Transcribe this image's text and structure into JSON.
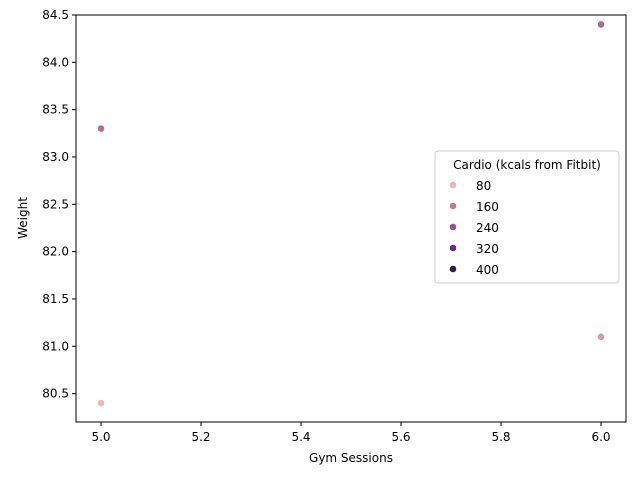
{
  "chart_data": {
    "type": "scatter",
    "title": "",
    "xlabel": "Gym Sessions",
    "ylabel": "Weight",
    "xlim": [
      4.95,
      6.05
    ],
    "ylim": [
      80.2,
      84.5
    ],
    "xticks": [
      5.0,
      5.2,
      5.4,
      5.6,
      5.8,
      6.0
    ],
    "xtick_labels": [
      "5.0",
      "5.2",
      "5.4",
      "5.6",
      "5.8",
      "6.0"
    ],
    "yticks": [
      80.5,
      81.0,
      81.5,
      82.0,
      82.5,
      83.0,
      83.5,
      84.0,
      84.5
    ],
    "ytick_labels": [
      "80.5",
      "81.0",
      "81.5",
      "82.0",
      "82.5",
      "83.0",
      "83.5",
      "84.0",
      "84.5"
    ],
    "grid": false,
    "hue_label": "Cardio (kcals from Fitbit)",
    "legend_placement": "center-right",
    "legend_entries": [
      {
        "label": "80",
        "color": "#e3b9b6"
      },
      {
        "label": "160",
        "color": "#c17b92"
      },
      {
        "label": "240",
        "color": "#9a5288"
      },
      {
        "label": "320",
        "color": "#663170"
      },
      {
        "label": "400",
        "color": "#2d1e3e"
      }
    ],
    "points": [
      {
        "x": 5.0,
        "y": 80.4,
        "color": "#e3bcb8"
      },
      {
        "x": 6.0,
        "y": 81.1,
        "color": "#d99ba3"
      },
      {
        "x": 5.0,
        "y": 83.3,
        "color": "#b36e92"
      },
      {
        "x": 6.0,
        "y": 84.4,
        "color": "#b0688f"
      }
    ]
  }
}
